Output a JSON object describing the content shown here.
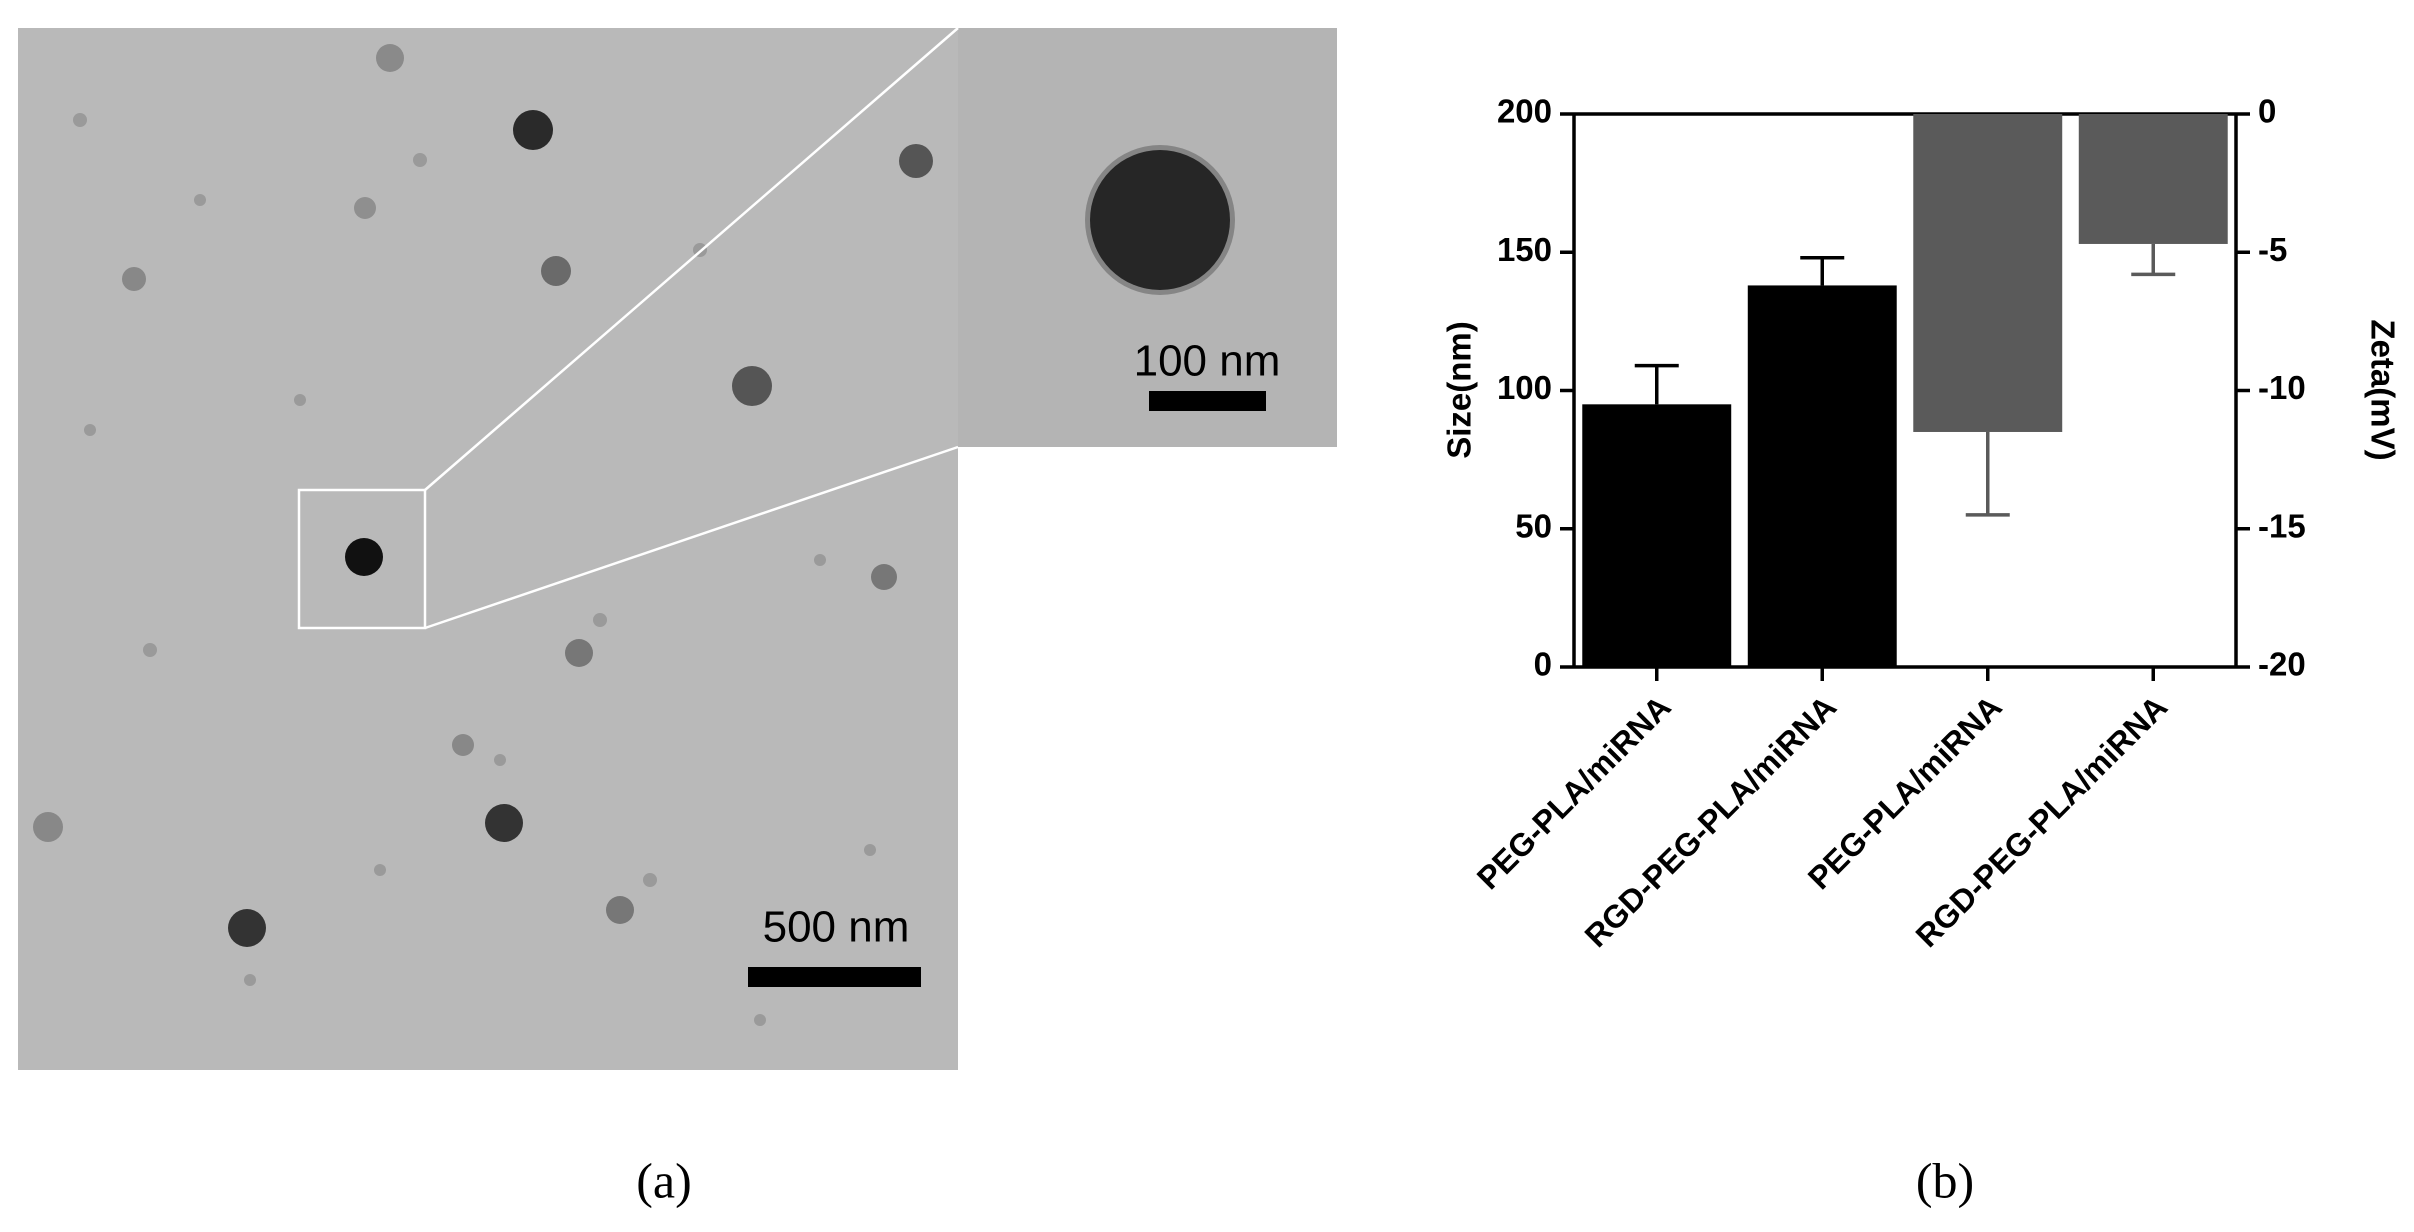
{
  "panel_a": {
    "label": "(a)",
    "scale_bar": "500 nm",
    "inset_scale_bar": "100 nm"
  },
  "chart_data": {
    "type": "bar",
    "panel_label": "(b)",
    "y_label": "Size(nm)",
    "y2_label": "Zeta(mV)",
    "categories": [
      "PEG-PLA/miRNA",
      "RGD-PEG-PLA/miRNA",
      "PEG-PLA/miRNA",
      "RGD-PEG-PLA/miRNA"
    ],
    "series": [
      {
        "color": "#000000",
        "values": [
          95,
          138,
          null,
          null
        ],
        "errors": [
          14,
          10,
          null,
          null
        ]
      },
      {
        "color": "#5a5a5a",
        "axis": "y2",
        "values": [
          null,
          null,
          -11.5,
          -4.7
        ],
        "errors": [
          null,
          null,
          3,
          1.1
        ]
      }
    ],
    "ylim": [
      0,
      200
    ],
    "yticks": [
      0,
      50,
      100,
      150,
      200
    ],
    "y2lim": [
      -20,
      0
    ],
    "y2ticks": [
      -20,
      -15,
      -10,
      -5,
      0
    ]
  }
}
